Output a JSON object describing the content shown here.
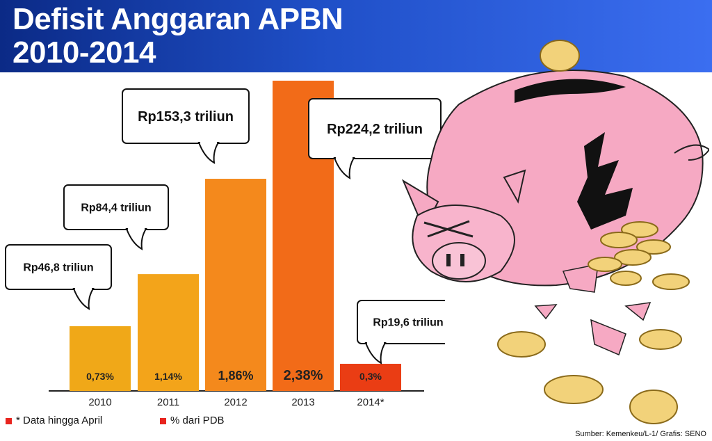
{
  "header": {
    "title_line1": "Defisit Anggaran APBN",
    "title_line2": "2010-2014"
  },
  "chart_data": {
    "type": "bar",
    "title": "Defisit Anggaran APBN 2010-2014",
    "categories": [
      "2010",
      "2011",
      "2012",
      "2013",
      "2014*"
    ],
    "values": [
      46.8,
      84.4,
      153.3,
      224.2,
      19.6
    ],
    "value_labels": [
      "Rp46,8 triliun",
      "Rp84,4 triliun",
      "Rp153,3 triliun",
      "Rp224,2 triliun",
      "Rp19,6 triliun"
    ],
    "pct_gdp": [
      0.73,
      1.14,
      1.86,
      2.38,
      0.3
    ],
    "pct_labels": [
      "0,73%",
      "1,14%",
      "1,86%",
      "2,38%",
      "0,3%"
    ],
    "bar_colors": [
      "#f0a818",
      "#f3a41a",
      "#f4891c",
      "#f26b18",
      "#ea3d14"
    ],
    "ylim": [
      0,
      240
    ],
    "grid": false
  },
  "legend": {
    "note": "* Data hingga April",
    "pct": "% dari PDB",
    "swatch_color": "#e8241e"
  },
  "source": "Sumber: Kemenkeu/L-1/ Grafis: SENO"
}
